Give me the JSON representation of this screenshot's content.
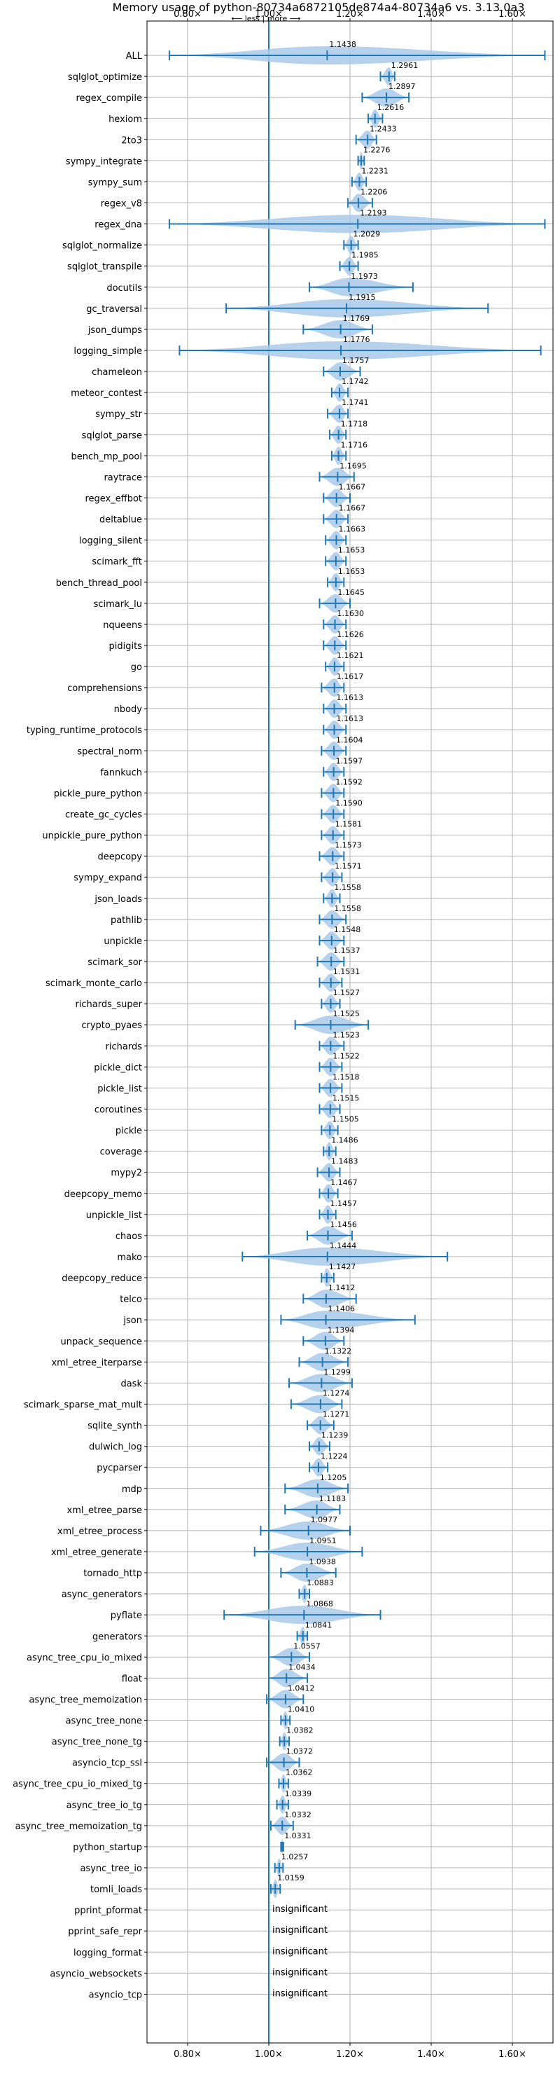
{
  "chart_data": {
    "type": "violin",
    "title": "Memory usage of python-80734a6872105de874a4-80734a6 vs. 3.13.0a3",
    "direction_note": "⟵ less | more ⟶",
    "xlim": [
      0.7,
      1.7
    ],
    "x_ticks": [
      0.8,
      1.0,
      1.2,
      1.4,
      1.6
    ],
    "x_tick_labels": [
      "0.80×",
      "1.00×",
      "1.20×",
      "1.40×",
      "1.60×"
    ],
    "baseline": 1.0,
    "grid": true,
    "insignificant_label": "insignificant",
    "benchmarks": [
      {
        "name": "ALL",
        "label": "1.1438",
        "center": 1.1438,
        "lo": 0.755,
        "hi": 1.68,
        "width": 0.3
      },
      {
        "name": "sqlglot_optimize",
        "label": "1.2961",
        "center": 1.2961,
        "lo": 1.275,
        "hi": 1.31,
        "width": 0.3
      },
      {
        "name": "regex_compile",
        "label": "1.2897",
        "center": 1.2897,
        "lo": 1.23,
        "hi": 1.345,
        "width": 0.3
      },
      {
        "name": "hexiom",
        "label": "1.2616",
        "center": 1.2616,
        "lo": 1.245,
        "hi": 1.28,
        "width": 0.3
      },
      {
        "name": "2to3",
        "label": "1.2433",
        "center": 1.2433,
        "lo": 1.215,
        "hi": 1.265,
        "width": 0.3
      },
      {
        "name": "sympy_integrate",
        "label": "1.2276",
        "center": 1.2276,
        "lo": 1.22,
        "hi": 1.235,
        "width": 0.3
      },
      {
        "name": "sympy_sum",
        "label": "1.2231",
        "center": 1.2231,
        "lo": 1.205,
        "hi": 1.24,
        "width": 0.3
      },
      {
        "name": "regex_v8",
        "label": "1.2206",
        "center": 1.2206,
        "lo": 1.195,
        "hi": 1.255,
        "width": 0.3
      },
      {
        "name": "regex_dna",
        "label": "1.2193",
        "center": 1.2193,
        "lo": 0.755,
        "hi": 1.68,
        "width": 0.3
      },
      {
        "name": "sqlglot_normalize",
        "label": "1.2029",
        "center": 1.2029,
        "lo": 1.185,
        "hi": 1.22,
        "width": 0.3
      },
      {
        "name": "sqlglot_transpile",
        "label": "1.1985",
        "center": 1.1985,
        "lo": 1.175,
        "hi": 1.22,
        "width": 0.3
      },
      {
        "name": "docutils",
        "label": "1.1973",
        "center": 1.1973,
        "lo": 1.1,
        "hi": 1.355,
        "width": 0.3
      },
      {
        "name": "gc_traversal",
        "label": "1.1915",
        "center": 1.1915,
        "lo": 0.895,
        "hi": 1.54,
        "width": 0.3
      },
      {
        "name": "json_dumps",
        "label": "1.1769",
        "center": 1.1769,
        "lo": 1.085,
        "hi": 1.255,
        "width": 0.3
      },
      {
        "name": "logging_simple",
        "label": "1.1776",
        "center": 1.1776,
        "lo": 0.78,
        "hi": 1.67,
        "width": 0.3
      },
      {
        "name": "chameleon",
        "label": "1.1757",
        "center": 1.1757,
        "lo": 1.135,
        "hi": 1.225,
        "width": 0.3
      },
      {
        "name": "meteor_contest",
        "label": "1.1742",
        "center": 1.1742,
        "lo": 1.155,
        "hi": 1.195,
        "width": 0.3
      },
      {
        "name": "sympy_str",
        "label": "1.1741",
        "center": 1.1741,
        "lo": 1.145,
        "hi": 1.195,
        "width": 0.3
      },
      {
        "name": "sqlglot_parse",
        "label": "1.1718",
        "center": 1.1718,
        "lo": 1.15,
        "hi": 1.19,
        "width": 0.3
      },
      {
        "name": "bench_mp_pool",
        "label": "1.1716",
        "center": 1.1716,
        "lo": 1.155,
        "hi": 1.19,
        "width": 0.3
      },
      {
        "name": "raytrace",
        "label": "1.1695",
        "center": 1.1695,
        "lo": 1.125,
        "hi": 1.21,
        "width": 0.3
      },
      {
        "name": "regex_effbot",
        "label": "1.1667",
        "center": 1.1667,
        "lo": 1.135,
        "hi": 1.2,
        "width": 0.3
      },
      {
        "name": "deltablue",
        "label": "1.1667",
        "center": 1.1667,
        "lo": 1.135,
        "hi": 1.195,
        "width": 0.3
      },
      {
        "name": "logging_silent",
        "label": "1.1663",
        "center": 1.1663,
        "lo": 1.14,
        "hi": 1.19,
        "width": 0.3
      },
      {
        "name": "scimark_fft",
        "label": "1.1653",
        "center": 1.1653,
        "lo": 1.14,
        "hi": 1.19,
        "width": 0.3
      },
      {
        "name": "bench_thread_pool",
        "label": "1.1653",
        "center": 1.1653,
        "lo": 1.145,
        "hi": 1.185,
        "width": 0.3
      },
      {
        "name": "scimark_lu",
        "label": "1.1645",
        "center": 1.1645,
        "lo": 1.125,
        "hi": 1.2,
        "width": 0.3
      },
      {
        "name": "nqueens",
        "label": "1.1630",
        "center": 1.163,
        "lo": 1.135,
        "hi": 1.19,
        "width": 0.3
      },
      {
        "name": "pidigits",
        "label": "1.1626",
        "center": 1.1626,
        "lo": 1.135,
        "hi": 1.19,
        "width": 0.3
      },
      {
        "name": "go",
        "label": "1.1621",
        "center": 1.1621,
        "lo": 1.14,
        "hi": 1.185,
        "width": 0.3
      },
      {
        "name": "comprehensions",
        "label": "1.1617",
        "center": 1.1617,
        "lo": 1.13,
        "hi": 1.185,
        "width": 0.3
      },
      {
        "name": "nbody",
        "label": "1.1613",
        "center": 1.1613,
        "lo": 1.135,
        "hi": 1.19,
        "width": 0.3
      },
      {
        "name": "typing_runtime_protocols",
        "label": "1.1613",
        "center": 1.1613,
        "lo": 1.135,
        "hi": 1.19,
        "width": 0.3
      },
      {
        "name": "spectral_norm",
        "label": "1.1604",
        "center": 1.1604,
        "lo": 1.13,
        "hi": 1.19,
        "width": 0.3
      },
      {
        "name": "fannkuch",
        "label": "1.1597",
        "center": 1.1597,
        "lo": 1.135,
        "hi": 1.185,
        "width": 0.3
      },
      {
        "name": "pickle_pure_python",
        "label": "1.1592",
        "center": 1.1592,
        "lo": 1.13,
        "hi": 1.185,
        "width": 0.3
      },
      {
        "name": "create_gc_cycles",
        "label": "1.1590",
        "center": 1.159,
        "lo": 1.13,
        "hi": 1.185,
        "width": 0.3
      },
      {
        "name": "unpickle_pure_python",
        "label": "1.1581",
        "center": 1.1581,
        "lo": 1.13,
        "hi": 1.185,
        "width": 0.3
      },
      {
        "name": "deepcopy",
        "label": "1.1573",
        "center": 1.1573,
        "lo": 1.125,
        "hi": 1.185,
        "width": 0.3
      },
      {
        "name": "sympy_expand",
        "label": "1.1571",
        "center": 1.1571,
        "lo": 1.13,
        "hi": 1.18,
        "width": 0.3
      },
      {
        "name": "json_loads",
        "label": "1.1558",
        "center": 1.1558,
        "lo": 1.135,
        "hi": 1.175,
        "width": 0.3
      },
      {
        "name": "pathlib",
        "label": "1.1558",
        "center": 1.1558,
        "lo": 1.125,
        "hi": 1.19,
        "width": 0.3
      },
      {
        "name": "unpickle",
        "label": "1.1548",
        "center": 1.1548,
        "lo": 1.125,
        "hi": 1.185,
        "width": 0.3
      },
      {
        "name": "scimark_sor",
        "label": "1.1537",
        "center": 1.1537,
        "lo": 1.12,
        "hi": 1.185,
        "width": 0.3
      },
      {
        "name": "scimark_monte_carlo",
        "label": "1.1531",
        "center": 1.1531,
        "lo": 1.125,
        "hi": 1.18,
        "width": 0.3
      },
      {
        "name": "richards_super",
        "label": "1.1527",
        "center": 1.1527,
        "lo": 1.13,
        "hi": 1.175,
        "width": 0.3
      },
      {
        "name": "crypto_pyaes",
        "label": "1.1525",
        "center": 1.1525,
        "lo": 1.065,
        "hi": 1.245,
        "width": 0.3
      },
      {
        "name": "richards",
        "label": "1.1523",
        "center": 1.1523,
        "lo": 1.125,
        "hi": 1.185,
        "width": 0.3
      },
      {
        "name": "pickle_dict",
        "label": "1.1522",
        "center": 1.1522,
        "lo": 1.125,
        "hi": 1.18,
        "width": 0.3
      },
      {
        "name": "pickle_list",
        "label": "1.1518",
        "center": 1.1518,
        "lo": 1.125,
        "hi": 1.18,
        "width": 0.3
      },
      {
        "name": "coroutines",
        "label": "1.1515",
        "center": 1.1515,
        "lo": 1.125,
        "hi": 1.175,
        "width": 0.3
      },
      {
        "name": "pickle",
        "label": "1.1505",
        "center": 1.1505,
        "lo": 1.13,
        "hi": 1.17,
        "width": 0.3
      },
      {
        "name": "coverage",
        "label": "1.1486",
        "center": 1.1486,
        "lo": 1.135,
        "hi": 1.165,
        "width": 0.3
      },
      {
        "name": "mypy2",
        "label": "1.1483",
        "center": 1.1483,
        "lo": 1.12,
        "hi": 1.175,
        "width": 0.3
      },
      {
        "name": "deepcopy_memo",
        "label": "1.1467",
        "center": 1.1467,
        "lo": 1.125,
        "hi": 1.17,
        "width": 0.3
      },
      {
        "name": "unpickle_list",
        "label": "1.1457",
        "center": 1.1457,
        "lo": 1.125,
        "hi": 1.165,
        "width": 0.3
      },
      {
        "name": "chaos",
        "label": "1.1456",
        "center": 1.1456,
        "lo": 1.095,
        "hi": 1.205,
        "width": 0.3
      },
      {
        "name": "mako",
        "label": "1.1444",
        "center": 1.1444,
        "lo": 0.935,
        "hi": 1.44,
        "width": 0.3
      },
      {
        "name": "deepcopy_reduce",
        "label": "1.1427",
        "center": 1.1427,
        "lo": 1.13,
        "hi": 1.16,
        "width": 0.3
      },
      {
        "name": "telco",
        "label": "1.1412",
        "center": 1.1412,
        "lo": 1.085,
        "hi": 1.215,
        "width": 0.3
      },
      {
        "name": "json",
        "label": "1.1406",
        "center": 1.1406,
        "lo": 1.03,
        "hi": 1.36,
        "width": 0.3
      },
      {
        "name": "unpack_sequence",
        "label": "1.1394",
        "center": 1.1394,
        "lo": 1.085,
        "hi": 1.185,
        "width": 0.3
      },
      {
        "name": "xml_etree_iterparse",
        "label": "1.1322",
        "center": 1.1322,
        "lo": 1.075,
        "hi": 1.195,
        "width": 0.3
      },
      {
        "name": "dask",
        "label": "1.1299",
        "center": 1.1299,
        "lo": 1.05,
        "hi": 1.205,
        "width": 0.3
      },
      {
        "name": "scimark_sparse_mat_mult",
        "label": "1.1274",
        "center": 1.1274,
        "lo": 1.055,
        "hi": 1.18,
        "width": 0.3
      },
      {
        "name": "sqlite_synth",
        "label": "1.1271",
        "center": 1.1271,
        "lo": 1.095,
        "hi": 1.16,
        "width": 0.3
      },
      {
        "name": "dulwich_log",
        "label": "1.1239",
        "center": 1.1239,
        "lo": 1.1,
        "hi": 1.15,
        "width": 0.3
      },
      {
        "name": "pycparser",
        "label": "1.1224",
        "center": 1.1224,
        "lo": 1.1,
        "hi": 1.145,
        "width": 0.3
      },
      {
        "name": "mdp",
        "label": "1.1205",
        "center": 1.1205,
        "lo": 1.04,
        "hi": 1.195,
        "width": 0.3
      },
      {
        "name": "xml_etree_parse",
        "label": "1.1183",
        "center": 1.1183,
        "lo": 1.04,
        "hi": 1.175,
        "width": 0.3
      },
      {
        "name": "xml_etree_process",
        "label": "1.0977",
        "center": 1.0977,
        "lo": 0.98,
        "hi": 1.2,
        "width": 0.3
      },
      {
        "name": "xml_etree_generate",
        "label": "1.0951",
        "center": 1.0951,
        "lo": 0.965,
        "hi": 1.23,
        "width": 0.3
      },
      {
        "name": "tornado_http",
        "label": "1.0938",
        "center": 1.0938,
        "lo": 1.03,
        "hi": 1.165,
        "width": 0.3
      },
      {
        "name": "async_generators",
        "label": "1.0883",
        "center": 1.0883,
        "lo": 1.075,
        "hi": 1.1,
        "width": 0.3
      },
      {
        "name": "pyflate",
        "label": "1.0868",
        "center": 1.0868,
        "lo": 0.89,
        "hi": 1.275,
        "width": 0.3
      },
      {
        "name": "generators",
        "label": "1.0841",
        "center": 1.0841,
        "lo": 1.07,
        "hi": 1.095,
        "width": 0.3
      },
      {
        "name": "async_tree_cpu_io_mixed",
        "label": "1.0557",
        "center": 1.0557,
        "lo": 1.0,
        "hi": 1.1,
        "width": 0.3
      },
      {
        "name": "float",
        "label": "1.0434",
        "center": 1.0434,
        "lo": 1.0,
        "hi": 1.095,
        "width": 0.3
      },
      {
        "name": "async_tree_memoization",
        "label": "1.0412",
        "center": 1.0412,
        "lo": 0.995,
        "hi": 1.085,
        "width": 0.3
      },
      {
        "name": "async_tree_none",
        "label": "1.0410",
        "center": 1.041,
        "lo": 1.03,
        "hi": 1.052,
        "width": 0.3
      },
      {
        "name": "async_tree_none_tg",
        "label": "1.0382",
        "center": 1.0382,
        "lo": 1.027,
        "hi": 1.05,
        "width": 0.3
      },
      {
        "name": "asyncio_tcp_ssl",
        "label": "1.0372",
        "center": 1.0372,
        "lo": 0.995,
        "hi": 1.075,
        "width": 0.3
      },
      {
        "name": "async_tree_cpu_io_mixed_tg",
        "label": "1.0362",
        "center": 1.0362,
        "lo": 1.025,
        "hi": 1.048,
        "width": 0.3
      },
      {
        "name": "async_tree_io_tg",
        "label": "1.0339",
        "center": 1.0339,
        "lo": 1.02,
        "hi": 1.048,
        "width": 0.3
      },
      {
        "name": "async_tree_memoization_tg",
        "label": "1.0332",
        "center": 1.0332,
        "lo": 1.005,
        "hi": 1.06,
        "width": 0.3
      },
      {
        "name": "python_startup",
        "label": "1.0331",
        "center": 1.0331,
        "lo": 1.03,
        "hi": 1.036,
        "width": 0.3
      },
      {
        "name": "async_tree_io",
        "label": "1.0257",
        "center": 1.0257,
        "lo": 1.015,
        "hi": 1.035,
        "width": 0.3
      },
      {
        "name": "tomli_loads",
        "label": "1.0159",
        "center": 1.0159,
        "lo": 1.005,
        "hi": 1.028,
        "width": 0.3
      },
      {
        "name": "pprint_pformat",
        "insignificant": true
      },
      {
        "name": "pprint_safe_repr",
        "insignificant": true
      },
      {
        "name": "logging_format",
        "insignificant": true
      },
      {
        "name": "asyncio_websockets",
        "insignificant": true
      },
      {
        "name": "asyncio_tcp",
        "insignificant": true
      }
    ]
  },
  "colors": {
    "violin_fill": "#a9c9e8",
    "whisker": "#1f77b4",
    "baseline": "#1f77b4",
    "grid": "#b0b0b0",
    "text": "#000000"
  }
}
